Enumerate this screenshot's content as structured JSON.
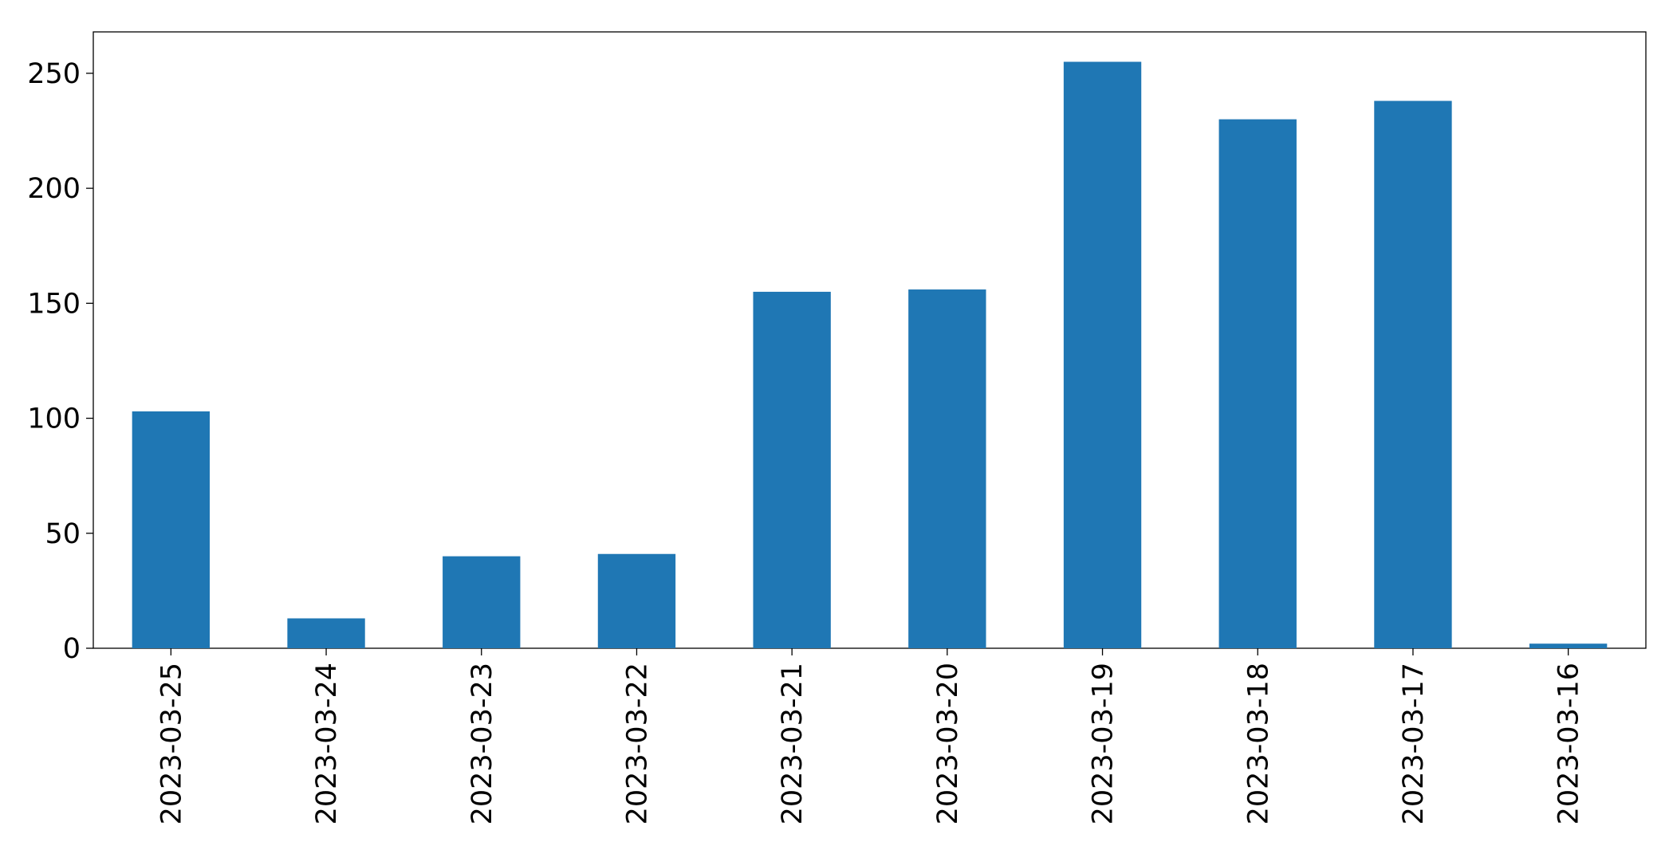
{
  "chart_data": {
    "type": "bar",
    "categories": [
      "2023-03-25",
      "2023-03-24",
      "2023-03-23",
      "2023-03-22",
      "2023-03-21",
      "2023-03-20",
      "2023-03-19",
      "2023-03-18",
      "2023-03-17",
      "2023-03-16"
    ],
    "values": [
      103,
      13,
      40,
      41,
      155,
      156,
      255,
      230,
      238,
      2
    ],
    "color": "#1f77b4",
    "ylim": [
      0,
      268
    ],
    "yticks": [
      0,
      50,
      100,
      150,
      200,
      250
    ],
    "grid": false
  }
}
